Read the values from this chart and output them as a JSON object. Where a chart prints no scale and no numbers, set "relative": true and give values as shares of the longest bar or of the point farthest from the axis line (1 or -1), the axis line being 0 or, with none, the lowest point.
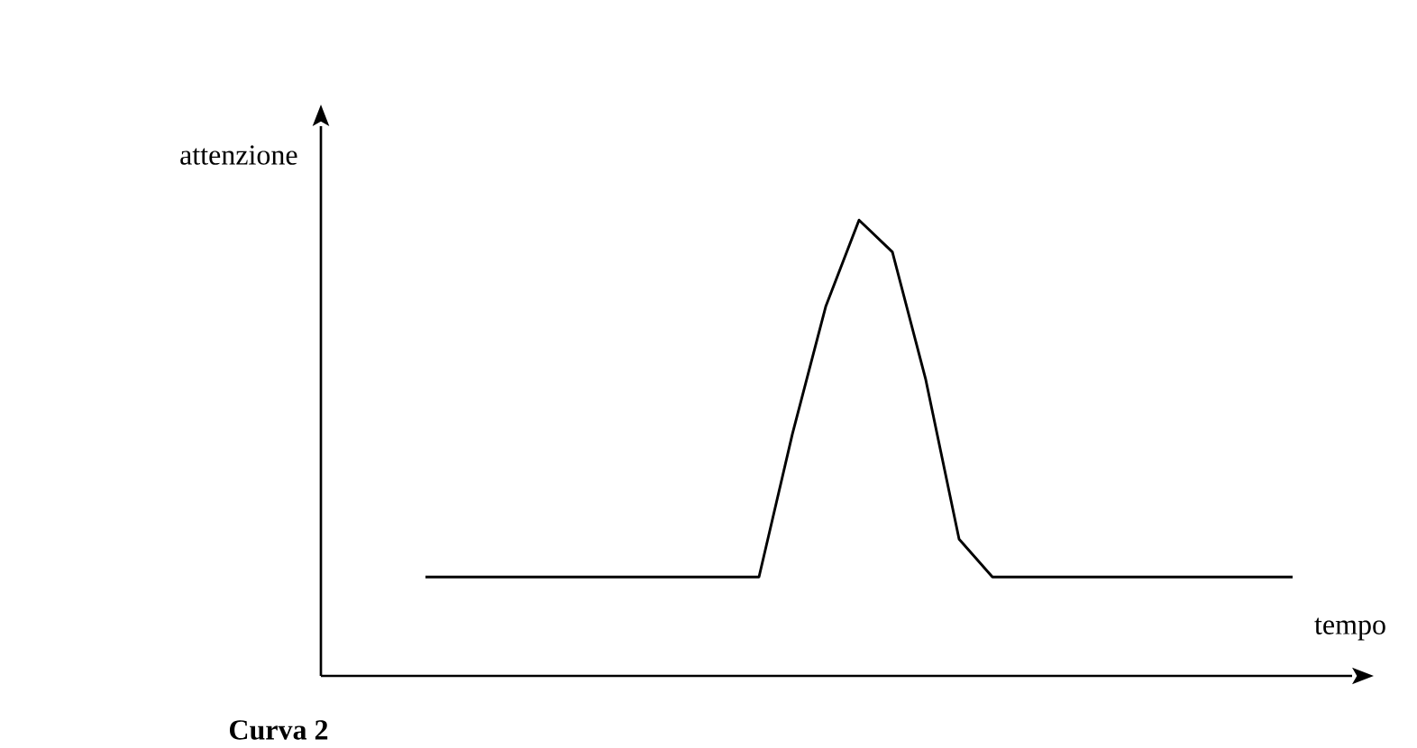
{
  "chart_data": {
    "type": "line",
    "relative": true,
    "xlabel": "tempo",
    "ylabel": "attenzione",
    "annotations": [
      "**Curva 2**"
    ],
    "categories": [
      null,
      null,
      null,
      null,
      null,
      null,
      null,
      null,
      null,
      null,
      null,
      null,
      null,
      null,
      null,
      null,
      null,
      null,
      null,
      null,
      null,
      null,
      null,
      null,
      null,
      null,
      null
    ],
    "color": "#000000",
    "values": [
      0.217,
      0.217,
      0.217,
      0.217,
      0.217,
      0.217,
      0.217,
      0.217,
      0.217,
      0.217,
      0.217,
      0.53,
      0.81,
      1,
      0.93,
      0.65,
      0.3,
      0.217,
      0.217,
      0.217,
      0.217,
      0.217,
      0.217,
      0.217,
      0.217,
      0.217,
      0.217
    ]
  }
}
